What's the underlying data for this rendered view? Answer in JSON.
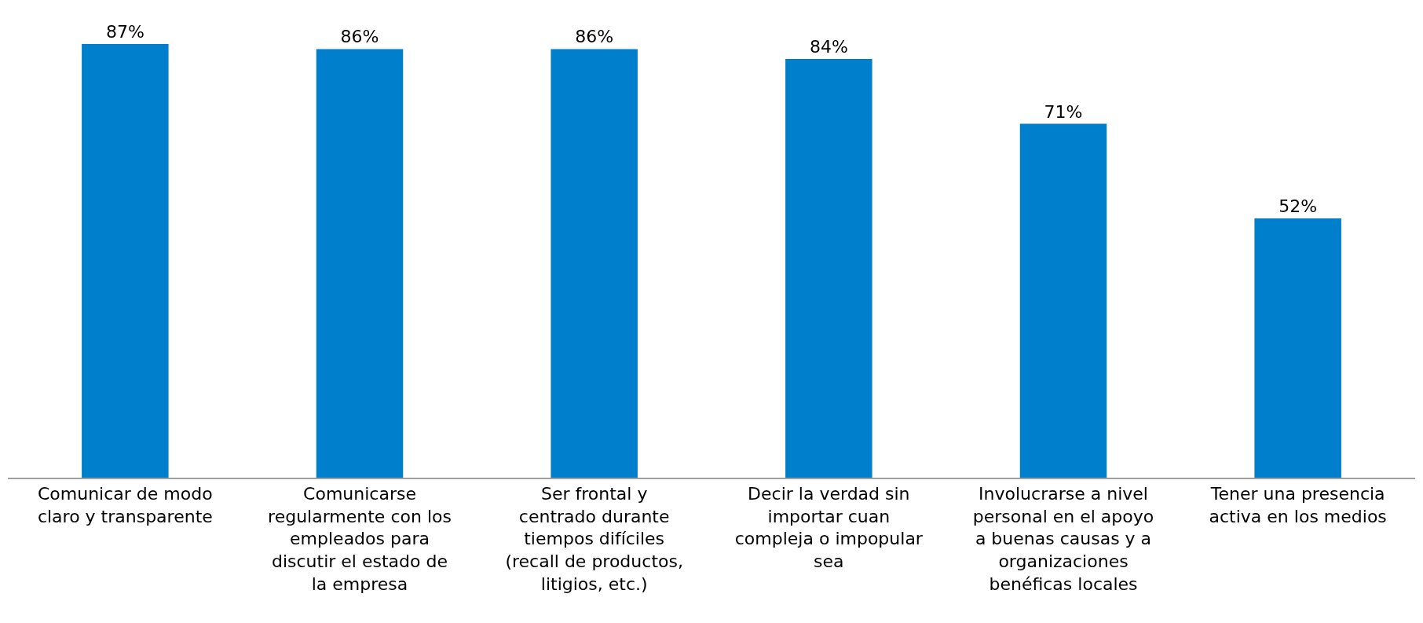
{
  "chart_data": {
    "type": "bar",
    "categories": [
      "Comunicar de modo claro y transparente",
      "Comunicarse regularmente con los empleados para discutir el estado de la empresa",
      "Ser frontal y centrado durante tiempos difíciles (recall de productos, litigios, etc.)",
      "Decir la verdad sin importar cuan compleja o impopular sea",
      "Involucrarse a nivel personal en el apoyo a buenas causas y a organizaciones benéficas locales",
      "Tener una presencia activa en los medios"
    ],
    "values": [
      87,
      86,
      86,
      84,
      71,
      52
    ],
    "value_labels": [
      "87%",
      "86%",
      "86%",
      "84%",
      "71%",
      "52%"
    ],
    "color": "#0080cc"
  }
}
